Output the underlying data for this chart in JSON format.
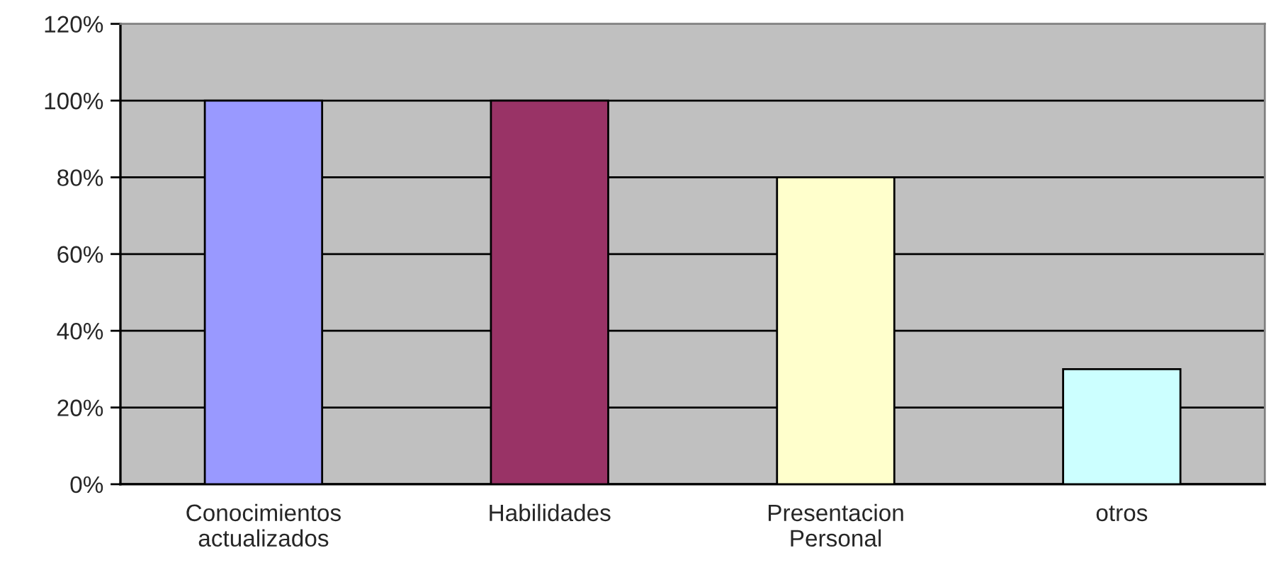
{
  "chart_data": {
    "type": "bar",
    "categories": [
      "Conocimientos\nactualizados",
      "Habilidades",
      "Presentacion\nPersonal",
      "otros"
    ],
    "values": [
      100,
      100,
      80,
      30
    ],
    "colors": [
      "#9999ff",
      "#993366",
      "#ffffcc",
      "#ccffff"
    ],
    "ylim": [
      0,
      120
    ],
    "yticks": [
      {
        "value": 0,
        "label": "0%"
      },
      {
        "value": 20,
        "label": "20%"
      },
      {
        "value": 40,
        "label": "40%"
      },
      {
        "value": 60,
        "label": "60%"
      },
      {
        "value": 80,
        "label": "80%"
      },
      {
        "value": 100,
        "label": "100%"
      },
      {
        "value": 120,
        "label": "120%"
      }
    ],
    "grid": "y",
    "legend": false
  }
}
